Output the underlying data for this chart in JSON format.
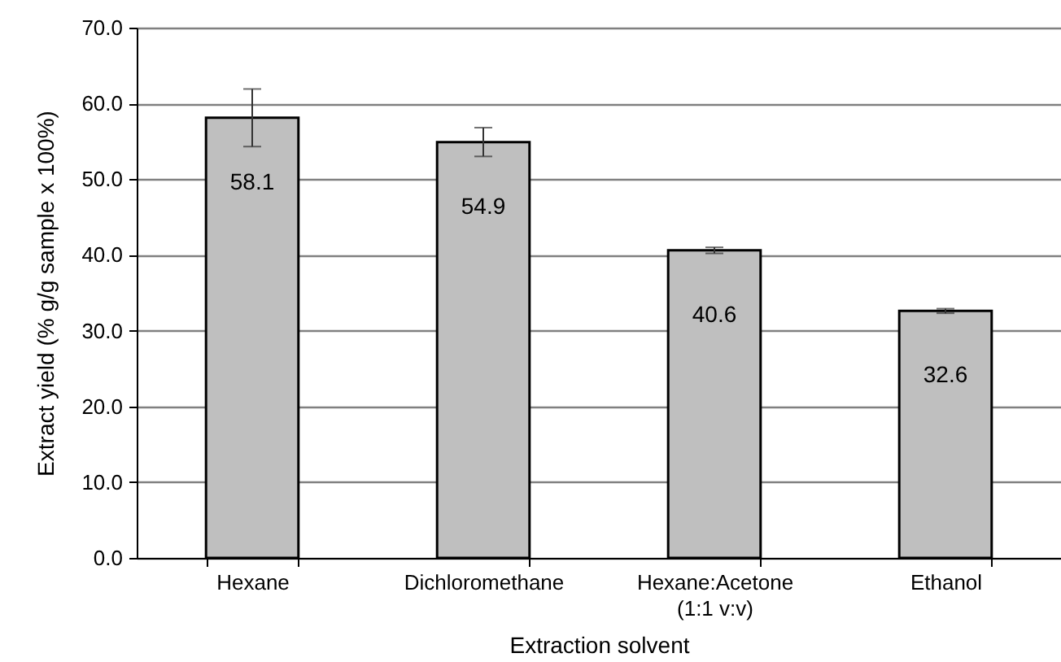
{
  "chart_data": {
    "type": "bar",
    "xlabel": "Extraction solvent",
    "ylabel": "Extract yield (% g/g sample x 100%)",
    "categories": [
      "Hexane",
      "Dichloromethane",
      "Hexane:Acetone\n(1:1 v:v)",
      "Ethanol"
    ],
    "values": [
      58.1,
      54.9,
      40.6,
      32.6
    ],
    "errors": [
      3.8,
      1.9,
      0.4,
      0.3
    ],
    "color": "#bfbfbf",
    "ylim": [
      0,
      70
    ],
    "yticks": [
      {
        "value": 0,
        "label": "0.0"
      },
      {
        "value": 10,
        "label": "10.0"
      },
      {
        "value": 20,
        "label": "20.0"
      },
      {
        "value": 30,
        "label": "30.0"
      },
      {
        "value": 40,
        "label": "40.0"
      },
      {
        "value": 50,
        "label": "50.0"
      },
      {
        "value": 60,
        "label": "60.0"
      },
      {
        "value": 70,
        "label": "70.0"
      }
    ],
    "grid": "y",
    "data_labels": true
  }
}
